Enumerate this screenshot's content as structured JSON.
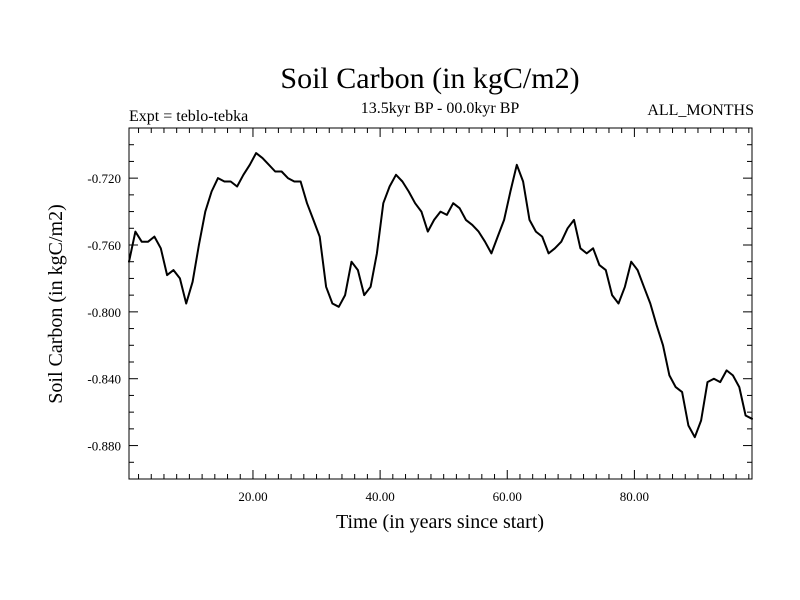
{
  "chart_data": {
    "type": "line",
    "title": "Soil Carbon (in kgC/m2)",
    "subtitle": "13.5kyr BP - 00.0kyr BP",
    "left_label": "Expt = teblo-tebka",
    "right_label": "ALL_MONTHS",
    "xlabel": "Time (in years since start)",
    "ylabel": "Soil Carbon (in kgC/m2)",
    "xlim": [
      0.5,
      98.5
    ],
    "ylim": [
      -0.9,
      -0.69
    ],
    "x_ticks": [
      20,
      40,
      60,
      80
    ],
    "x_tick_labels": [
      "20.00",
      "40.00",
      "60.00",
      "80.00"
    ],
    "y_ticks": [
      -0.72,
      -0.76,
      -0.8,
      -0.84,
      -0.88
    ],
    "y_tick_labels": [
      "-0.720",
      "-0.760",
      "-0.800",
      "-0.840",
      "-0.880"
    ],
    "series": [
      {
        "name": "Soil Carbon",
        "color": "#000000",
        "x": [
          0.5,
          1.5,
          2.5,
          3.5,
          4.5,
          5.5,
          6.5,
          7.5,
          8.5,
          9.5,
          10.5,
          11.5,
          12.5,
          13.5,
          14.5,
          15.5,
          16.5,
          17.5,
          18.5,
          19.5,
          20.5,
          21.5,
          22.5,
          23.5,
          24.5,
          25.5,
          26.5,
          27.5,
          28.5,
          29.5,
          30.5,
          31.5,
          32.5,
          33.5,
          34.5,
          35.5,
          36.5,
          37.5,
          38.5,
          39.5,
          40.5,
          41.5,
          42.5,
          43.5,
          44.5,
          45.5,
          46.5,
          47.5,
          48.5,
          49.5,
          50.5,
          51.5,
          52.5,
          53.5,
          54.5,
          55.5,
          56.5,
          57.5,
          58.5,
          59.5,
          60.5,
          61.5,
          62.5,
          63.5,
          64.5,
          65.5,
          66.5,
          67.5,
          68.5,
          69.5,
          70.5,
          71.5,
          72.5,
          73.5,
          74.5,
          75.5,
          76.5,
          77.5,
          78.5,
          79.5,
          80.5,
          81.5,
          82.5,
          83.5,
          84.5,
          85.5,
          86.5,
          87.5,
          88.5,
          89.5,
          90.5,
          91.5,
          92.5,
          93.5,
          94.5,
          95.5,
          96.5,
          97.5,
          98.5
        ],
        "y": [
          -0.77,
          -0.752,
          -0.758,
          -0.758,
          -0.755,
          -0.762,
          -0.778,
          -0.775,
          -0.78,
          -0.795,
          -0.782,
          -0.76,
          -0.74,
          -0.728,
          -0.72,
          -0.722,
          -0.722,
          -0.725,
          -0.718,
          -0.712,
          -0.705,
          -0.708,
          -0.712,
          -0.716,
          -0.716,
          -0.72,
          -0.722,
          -0.722,
          -0.735,
          -0.745,
          -0.755,
          -0.785,
          -0.795,
          -0.797,
          -0.79,
          -0.77,
          -0.775,
          -0.79,
          -0.785,
          -0.765,
          -0.735,
          -0.725,
          -0.718,
          -0.722,
          -0.728,
          -0.735,
          -0.74,
          -0.752,
          -0.745,
          -0.74,
          -0.742,
          -0.735,
          -0.738,
          -0.745,
          -0.748,
          -0.752,
          -0.758,
          -0.765,
          -0.755,
          -0.745,
          -0.728,
          -0.712,
          -0.722,
          -0.745,
          -0.752,
          -0.755,
          -0.765,
          -0.762,
          -0.758,
          -0.75,
          -0.745,
          -0.762,
          -0.765,
          -0.762,
          -0.772,
          -0.775,
          -0.79,
          -0.795,
          -0.785,
          -0.77,
          -0.775,
          -0.785,
          -0.795,
          -0.808,
          -0.82,
          -0.838,
          -0.845,
          -0.848,
          -0.868,
          -0.875,
          -0.865,
          -0.842,
          -0.84,
          -0.842,
          -0.835,
          -0.838,
          -0.845,
          -0.862,
          -0.864
        ]
      }
    ]
  }
}
